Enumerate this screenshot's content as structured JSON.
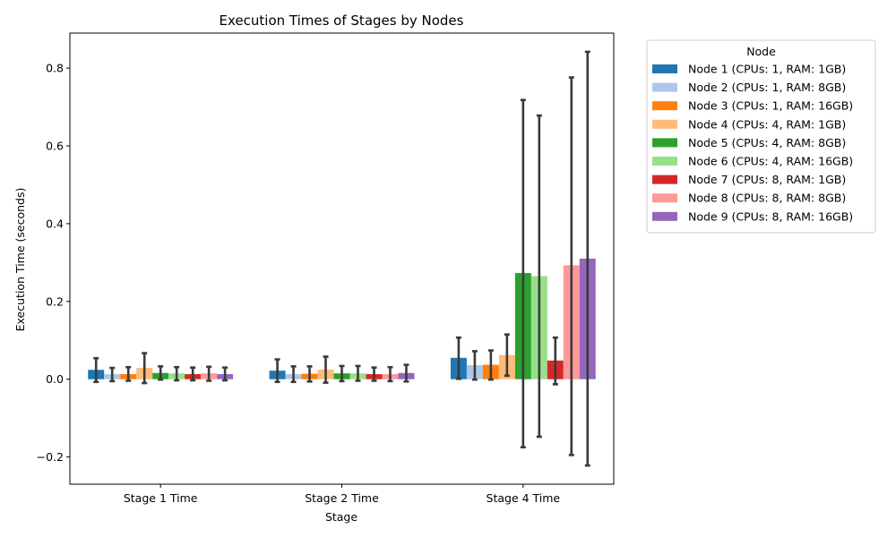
{
  "chart_data": {
    "type": "bar",
    "title": "Execution Times of Stages by Nodes",
    "xlabel": "Stage",
    "ylabel": "Execution Time (seconds)",
    "categories": [
      "Stage 1 Time",
      "Stage 2 Time",
      "Stage 4 Time"
    ],
    "ylim": [
      -0.27,
      0.89
    ],
    "yticks": [
      -0.2,
      0.0,
      0.2,
      0.4,
      0.6,
      0.8
    ],
    "ytick_labels": [
      "−0.2",
      "0.0",
      "0.2",
      "0.4",
      "0.6",
      "0.8"
    ],
    "grid": false,
    "legend": {
      "title": "Node",
      "placement": "outside-right"
    },
    "error_bars": true,
    "series": [
      {
        "name": "Node 1 (CPUs: 1, RAM: 1GB)",
        "color": "#1f77b4",
        "values": [
          0.024,
          0.022,
          0.055
        ],
        "errors": [
          [
            -0.007,
            0.054
          ],
          [
            -0.007,
            0.051
          ],
          [
            0.001,
            0.107
          ]
        ]
      },
      {
        "name": "Node 2 (CPUs: 1, RAM: 8GB)",
        "color": "#aec7e8",
        "values": [
          0.013,
          0.013,
          0.036
        ],
        "errors": [
          [
            -0.005,
            0.029
          ],
          [
            -0.007,
            0.033
          ],
          [
            -0.001,
            0.072
          ]
        ]
      },
      {
        "name": "Node 3 (CPUs: 1, RAM: 16GB)",
        "color": "#ff7f0e",
        "values": [
          0.013,
          0.014,
          0.037
        ],
        "errors": [
          [
            -0.004,
            0.031
          ],
          [
            -0.006,
            0.033
          ],
          [
            -0.001,
            0.074
          ]
        ]
      },
      {
        "name": "Node 4 (CPUs: 4, RAM: 1GB)",
        "color": "#ffbb78",
        "values": [
          0.029,
          0.025,
          0.062
        ],
        "errors": [
          [
            -0.01,
            0.067
          ],
          [
            -0.009,
            0.058
          ],
          [
            0.009,
            0.115
          ]
        ]
      },
      {
        "name": "Node 5 (CPUs: 4, RAM: 8GB)",
        "color": "#2ca02c",
        "values": [
          0.016,
          0.015,
          0.273
        ],
        "errors": [
          [
            -0.001,
            0.033
          ],
          [
            -0.005,
            0.034
          ],
          [
            -0.175,
            0.718
          ]
        ]
      },
      {
        "name": "Node 6 (CPUs: 4, RAM: 16GB)",
        "color": "#98df8a",
        "values": [
          0.015,
          0.015,
          0.265
        ],
        "errors": [
          [
            -0.003,
            0.031
          ],
          [
            -0.004,
            0.034
          ],
          [
            -0.148,
            0.678
          ]
        ]
      },
      {
        "name": "Node 7 (CPUs: 8, RAM: 1GB)",
        "color": "#d62728",
        "values": [
          0.013,
          0.013,
          0.048
        ],
        "errors": [
          [
            -0.003,
            0.03
          ],
          [
            -0.004,
            0.03
          ],
          [
            -0.013,
            0.107
          ]
        ]
      },
      {
        "name": "Node 8 (CPUs: 8, RAM: 8GB)",
        "color": "#ff9896",
        "values": [
          0.015,
          0.013,
          0.293
        ],
        "errors": [
          [
            -0.004,
            0.032
          ],
          [
            -0.005,
            0.031
          ],
          [
            -0.195,
            0.776
          ]
        ]
      },
      {
        "name": "Node 9 (CPUs: 8, RAM: 16GB)",
        "color": "#9467bd",
        "values": [
          0.013,
          0.016,
          0.31
        ],
        "errors": [
          [
            -0.003,
            0.03
          ],
          [
            -0.006,
            0.037
          ],
          [
            -0.222,
            0.842
          ]
        ]
      }
    ]
  }
}
